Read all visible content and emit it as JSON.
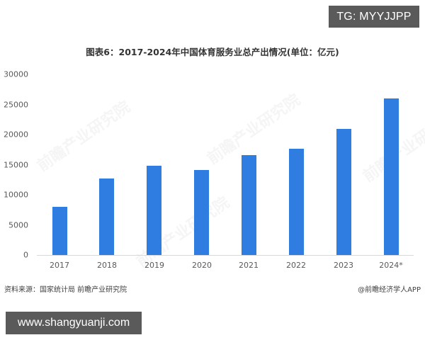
{
  "overlay": {
    "top_banner": "TG: MYYJJPP",
    "bottom_banner": "www.shangyuanji.com"
  },
  "chart": {
    "title": "图表6：2017-2024年中国体育服务业总产出情况(单位：亿元)",
    "source": "资料来源：国家统计局 前瞻产业研究院",
    "credit": "@前瞻经济学人APP",
    "watermark": "前瞻产业研究院",
    "bar_color": "#2f7de0",
    "y_ticks": [
      "30000",
      "25000",
      "20000",
      "15000",
      "10000",
      "5000",
      "0"
    ],
    "x_labels": [
      "2017",
      "2018",
      "2019",
      "2020",
      "2021",
      "2022",
      "2023",
      "2024*"
    ]
  },
  "chart_data": {
    "type": "bar",
    "title": "图表6：2017-2024年中国体育服务业总产出情况(单位：亿元)",
    "xlabel": "",
    "ylabel": "",
    "categories": [
      "2017",
      "2018",
      "2019",
      "2020",
      "2021",
      "2022",
      "2023",
      "2024*"
    ],
    "values": [
      8000,
      12700,
      14800,
      14100,
      16600,
      17700,
      21000,
      26000
    ],
    "unit": "亿元",
    "ylim": [
      0,
      30000
    ],
    "y_tick_step": 5000,
    "grid": false,
    "legend": null,
    "annotations": [
      "资料来源：国家统计局 前瞻产业研究院",
      "@前瞻经济学人APP"
    ]
  }
}
